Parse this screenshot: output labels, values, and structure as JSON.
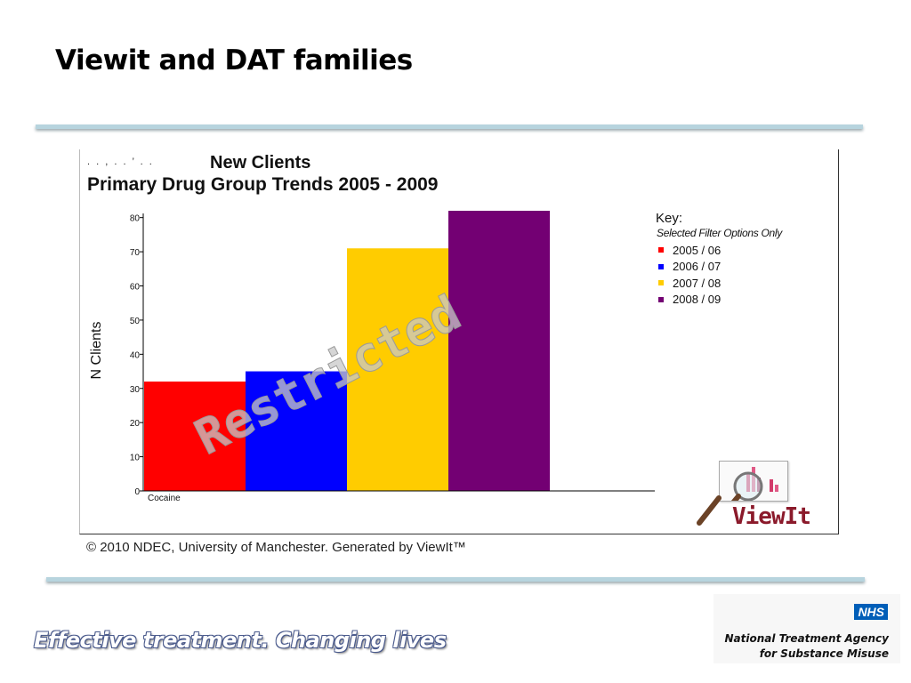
{
  "slide": {
    "title": "Viewit and DAT families",
    "tagline": "Effective treatment. Changing lives",
    "nhs_badge": "NHS",
    "nta_line1": "National Treatment Agency",
    "nta_line2": "for Substance Misuse"
  },
  "chart_header": {
    "scribble": ". . , . . ’ . .",
    "title": "New Clients",
    "subtitle": "Primary Drug Group Trends 2005 - 2009"
  },
  "watermark": "Restricted",
  "key": {
    "title": "Key:",
    "subtitle": "Selected Filter Options Only"
  },
  "logo": {
    "text": "ViewIt",
    "icon": "magnifier-chart-icon"
  },
  "copyright": "© 2010 NDEC, University of Manchester. Generated by ViewIt™",
  "chart_data": {
    "type": "bar",
    "title": "New Clients",
    "subtitle": "Primary Drug Group Trends 2005 - 2009",
    "xlabel": "",
    "ylabel": "N Clients",
    "categories": [
      "Cocaine"
    ],
    "series": [
      {
        "name": "2005 / 06",
        "values": [
          32
        ],
        "color": "#ff0000"
      },
      {
        "name": "2006 / 07",
        "values": [
          35
        ],
        "color": "#0000ff"
      },
      {
        "name": "2007 / 08",
        "values": [
          71
        ],
        "color": "#ffcc00"
      },
      {
        "name": "2008 / 09",
        "values": [
          82
        ],
        "color": "#730073"
      }
    ],
    "ylim": [
      0,
      82
    ],
    "yticks": [
      0,
      10,
      20,
      30,
      40,
      50,
      60,
      70,
      80
    ],
    "grid": false,
    "legend_position": "right"
  }
}
